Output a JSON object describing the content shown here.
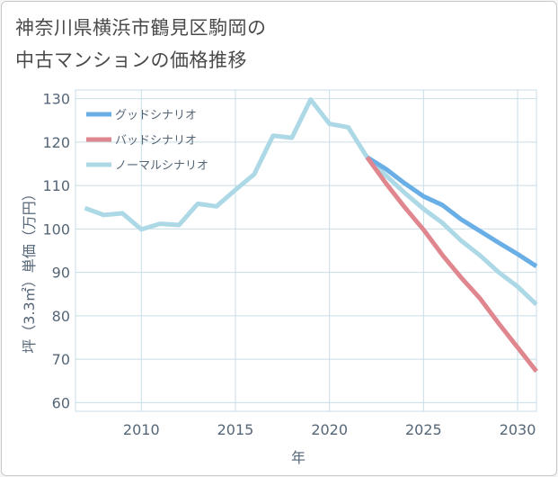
{
  "page_title_line1": "神奈川県横浜市鶴見区駒岡の",
  "page_title_line2": "中古マンションの価格推移",
  "colors": {
    "good": "#6aaee6",
    "bad": "#e0868e",
    "normal": "#add8e6",
    "grid": "#c8dde8",
    "axis_text": "#556677"
  },
  "chart_data": {
    "type": "line",
    "title": "神奈川県横浜市鶴見区駒岡の中古マンションの価格推移",
    "xlabel": "年",
    "ylabel": "坪（3.3㎡）単価（万円）",
    "xlim": [
      2006.5,
      2031
    ],
    "ylim": [
      58,
      132
    ],
    "grid": true,
    "legend_position": "top-left",
    "x_ticks": [
      2010,
      2015,
      2020,
      2025,
      2030
    ],
    "y_ticks": [
      60,
      70,
      80,
      90,
      100,
      110,
      120,
      130
    ],
    "series": [
      {
        "name": "グッドシナリオ",
        "color": "#6aaee6",
        "x": [
          2022,
          2023,
          2024,
          2025,
          2026,
          2027,
          2028,
          2029,
          2030,
          2031
        ],
        "values": [
          116.5,
          113.8,
          110.5,
          107.5,
          105.5,
          102.2,
          99.5,
          96.8,
          94.2,
          91.4
        ]
      },
      {
        "name": "バッドシナリオ",
        "color": "#e0868e",
        "x": [
          2022,
          2023,
          2024,
          2025,
          2026,
          2027,
          2028,
          2029,
          2030,
          2031
        ],
        "values": [
          116.5,
          110.5,
          105.0,
          99.8,
          94.0,
          88.8,
          84.0,
          78.2,
          72.7,
          67.2
        ]
      },
      {
        "name": "ノーマルシナリオ",
        "color": "#add8e6",
        "x": [
          2007,
          2008,
          2009,
          2010,
          2011,
          2012,
          2013,
          2014,
          2015,
          2016,
          2017,
          2018,
          2019,
          2020,
          2021,
          2022,
          2023,
          2024,
          2025,
          2026,
          2027,
          2028,
          2029,
          2030,
          2031
        ],
        "values": [
          104.8,
          103.2,
          103.6,
          99.9,
          101.2,
          100.9,
          105.8,
          105.2,
          109.0,
          112.6,
          121.5,
          121.0,
          129.8,
          124.2,
          123.4,
          116.5,
          112.3,
          108.3,
          104.6,
          101.4,
          97.3,
          93.9,
          90.0,
          86.7,
          82.6
        ]
      }
    ]
  }
}
